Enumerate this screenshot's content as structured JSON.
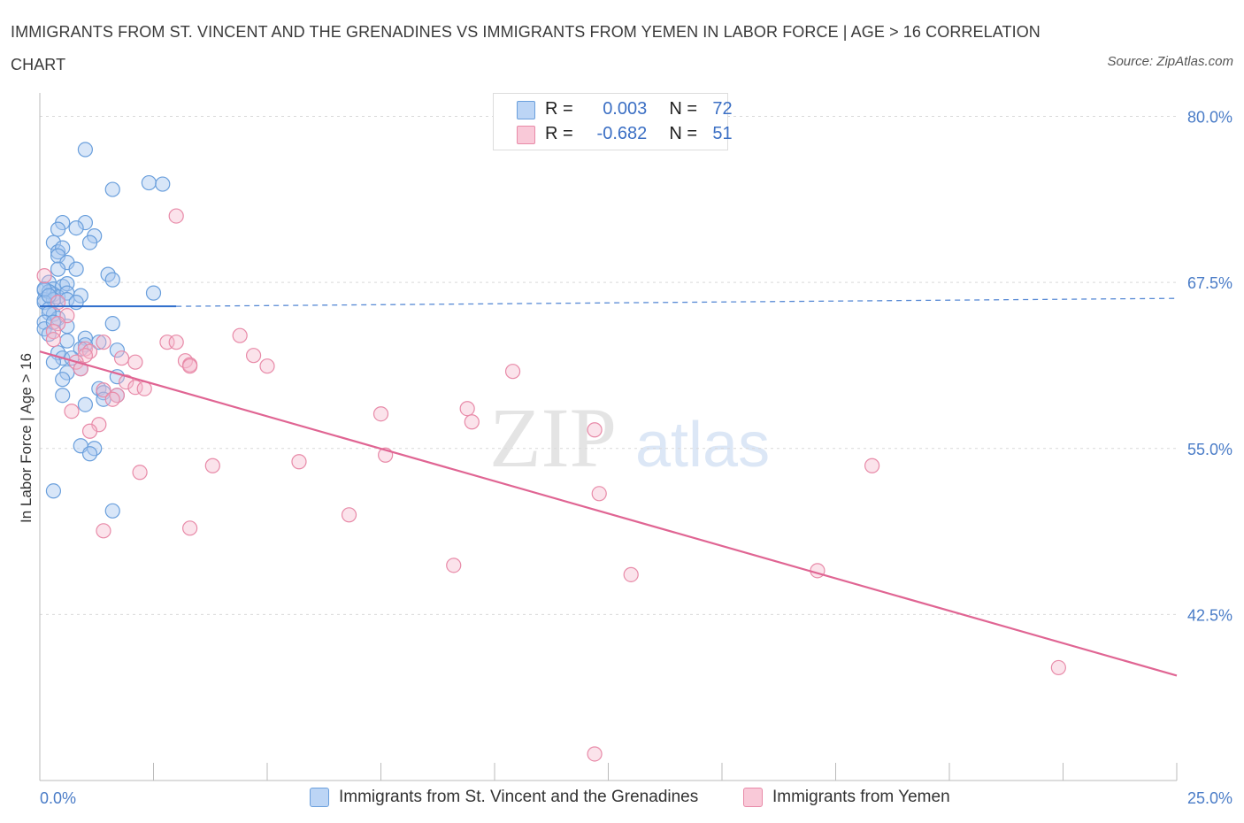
{
  "title": "IMMIGRANTS FROM ST. VINCENT AND THE GRENADINES VS IMMIGRANTS FROM YEMEN IN LABOR FORCE | AGE > 16 CORRELATION CHART",
  "source": "Source: ZipAtlas.com",
  "watermark": {
    "zip": "ZIP",
    "atlas": "atlas"
  },
  "legend": {
    "r_label": "R =",
    "n_label": "N =",
    "rows": [
      {
        "r": "0.003",
        "n": "72"
      },
      {
        "r": "-0.682",
        "n": "51"
      }
    ]
  },
  "colors": {
    "blue_fill": "#a8c8f0",
    "blue_stroke": "#6a9fdc",
    "blue_line": "#2f6ecb",
    "pink_fill": "#f6b8cc",
    "pink_stroke": "#e88aa8",
    "pink_line": "#e06593",
    "grid": "#d9d9d9",
    "tick_text": "#4a7cc7"
  },
  "chart_data": {
    "type": "scatter",
    "title": "IMMIGRANTS FROM ST. VINCENT AND THE GRENADINES VS IMMIGRANTS FROM YEMEN IN LABOR FORCE | AGE > 16 CORRELATION CHART",
    "xlabel": "",
    "ylabel": "In Labor Force | Age > 16",
    "xlim": [
      0,
      25
    ],
    "ylim": [
      30.0,
      80.9
    ],
    "x_tick_labels": [
      "0.0%",
      "25.0%"
    ],
    "y_ticks": [
      {
        "value": 80.0,
        "label": "80.0%"
      },
      {
        "value": 67.5,
        "label": "67.5%"
      },
      {
        "value": 55.0,
        "label": "55.0%"
      },
      {
        "value": 42.5,
        "label": "42.5%"
      }
    ],
    "grid": true,
    "series": [
      {
        "name": "Immigrants from St. Vincent and the Grenadines",
        "color": "#6a9fdc",
        "R": 0.003,
        "N": 72,
        "trend": {
          "solid": [
            [
              0.0,
              65.7
            ],
            [
              3.0,
              65.7
            ]
          ],
          "dashed": [
            [
              3.0,
              65.7
            ],
            [
              25.0,
              66.3
            ]
          ]
        },
        "points": [
          [
            1.0,
            77.5
          ],
          [
            2.4,
            75.0
          ],
          [
            2.7,
            74.9
          ],
          [
            1.6,
            74.5
          ],
          [
            1.0,
            72.0
          ],
          [
            0.5,
            72.0
          ],
          [
            0.4,
            71.5
          ],
          [
            0.8,
            71.6
          ],
          [
            1.2,
            71.0
          ],
          [
            0.3,
            70.5
          ],
          [
            1.1,
            70.5
          ],
          [
            0.4,
            69.8
          ],
          [
            0.5,
            70.1
          ],
          [
            0.4,
            69.5
          ],
          [
            0.6,
            69.0
          ],
          [
            0.8,
            68.5
          ],
          [
            0.4,
            68.5
          ],
          [
            1.5,
            68.1
          ],
          [
            1.6,
            67.7
          ],
          [
            0.2,
            67.5
          ],
          [
            0.3,
            67.0
          ],
          [
            0.5,
            67.2
          ],
          [
            0.6,
            67.4
          ],
          [
            0.1,
            66.9
          ],
          [
            0.3,
            66.6
          ],
          [
            0.4,
            66.4
          ],
          [
            0.1,
            66.2
          ],
          [
            0.2,
            66.8
          ],
          [
            0.6,
            66.7
          ],
          [
            0.9,
            66.5
          ],
          [
            2.5,
            66.7
          ],
          [
            0.3,
            66.2
          ],
          [
            0.6,
            66.2
          ],
          [
            0.1,
            66.0
          ],
          [
            0.8,
            66.0
          ],
          [
            0.2,
            65.5
          ],
          [
            0.3,
            65.1
          ],
          [
            0.4,
            64.8
          ],
          [
            0.2,
            65.2
          ],
          [
            0.1,
            64.5
          ],
          [
            1.6,
            64.4
          ],
          [
            0.1,
            64.0
          ],
          [
            0.6,
            64.2
          ],
          [
            1.0,
            63.3
          ],
          [
            0.2,
            63.6
          ],
          [
            0.6,
            63.1
          ],
          [
            1.3,
            63.0
          ],
          [
            1.0,
            62.8
          ],
          [
            0.9,
            62.5
          ],
          [
            0.4,
            62.2
          ],
          [
            1.7,
            62.4
          ],
          [
            0.5,
            61.8
          ],
          [
            0.7,
            61.8
          ],
          [
            0.3,
            61.5
          ],
          [
            0.9,
            61.0
          ],
          [
            0.6,
            60.7
          ],
          [
            1.7,
            60.4
          ],
          [
            0.5,
            60.2
          ],
          [
            1.3,
            59.5
          ],
          [
            1.4,
            59.2
          ],
          [
            1.7,
            59.0
          ],
          [
            0.5,
            59.0
          ],
          [
            1.4,
            58.7
          ],
          [
            1.0,
            58.3
          ],
          [
            0.9,
            55.2
          ],
          [
            1.2,
            55.0
          ],
          [
            1.1,
            54.6
          ],
          [
            0.3,
            51.8
          ],
          [
            1.6,
            50.3
          ],
          [
            0.1,
            67.0
          ],
          [
            0.2,
            66.5
          ],
          [
            0.3,
            64.5
          ]
        ]
      },
      {
        "name": "Immigrants from Yemen",
        "color": "#e88aa8",
        "R": -0.682,
        "N": 51,
        "trend": {
          "solid": [
            [
              0.0,
              62.3
            ],
            [
              25.0,
              37.9
            ]
          ]
        },
        "points": [
          [
            3.0,
            72.5
          ],
          [
            0.1,
            68.0
          ],
          [
            0.4,
            66.0
          ],
          [
            0.6,
            65.0
          ],
          [
            0.4,
            64.4
          ],
          [
            0.3,
            63.8
          ],
          [
            0.3,
            63.2
          ],
          [
            1.4,
            63.0
          ],
          [
            2.8,
            63.0
          ],
          [
            3.0,
            63.0
          ],
          [
            1.0,
            62.5
          ],
          [
            1.1,
            62.3
          ],
          [
            1.0,
            62.0
          ],
          [
            1.8,
            61.8
          ],
          [
            0.8,
            61.5
          ],
          [
            2.1,
            61.5
          ],
          [
            3.2,
            61.6
          ],
          [
            3.3,
            61.3
          ],
          [
            3.3,
            61.2
          ],
          [
            0.9,
            61.0
          ],
          [
            4.4,
            63.5
          ],
          [
            4.7,
            62.0
          ],
          [
            5.0,
            61.2
          ],
          [
            1.9,
            60.0
          ],
          [
            2.1,
            59.6
          ],
          [
            2.3,
            59.5
          ],
          [
            1.4,
            59.4
          ],
          [
            1.7,
            59.0
          ],
          [
            1.6,
            58.7
          ],
          [
            0.7,
            57.8
          ],
          [
            7.5,
            57.6
          ],
          [
            9.4,
            58.0
          ],
          [
            10.4,
            60.8
          ],
          [
            9.5,
            57.0
          ],
          [
            1.3,
            56.8
          ],
          [
            1.1,
            56.3
          ],
          [
            12.2,
            56.4
          ],
          [
            5.7,
            54.0
          ],
          [
            7.6,
            54.5
          ],
          [
            3.8,
            53.7
          ],
          [
            2.2,
            53.2
          ],
          [
            18.3,
            53.7
          ],
          [
            12.3,
            51.6
          ],
          [
            6.8,
            50.0
          ],
          [
            1.4,
            48.8
          ],
          [
            3.3,
            49.0
          ],
          [
            9.1,
            46.2
          ],
          [
            13.0,
            45.5
          ],
          [
            17.1,
            45.8
          ],
          [
            22.4,
            38.5
          ],
          [
            12.2,
            32.0
          ]
        ]
      }
    ]
  },
  "bottom_legend": [
    {
      "label": "Immigrants from St. Vincent and the Grenadines"
    },
    {
      "label": "Immigrants from Yemen"
    }
  ]
}
